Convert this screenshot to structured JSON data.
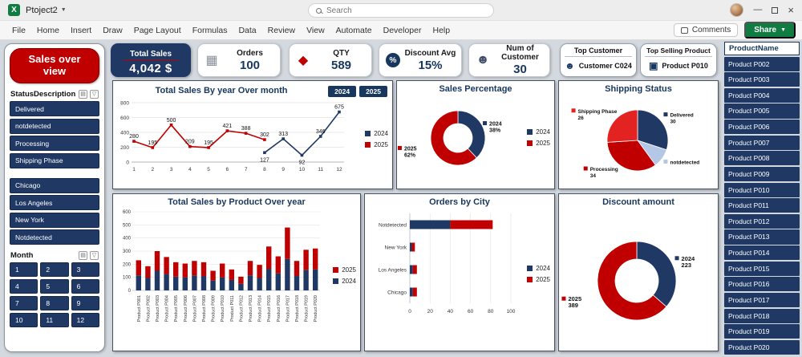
{
  "titlebar": {
    "workbook_name": "Ptoject2",
    "search_placeholder": "Search"
  },
  "ribbon": {
    "tabs": [
      "File",
      "Home",
      "Insert",
      "Draw",
      "Page Layout",
      "Formulas",
      "Data",
      "Review",
      "View",
      "Automate",
      "Developer",
      "Help"
    ],
    "comments_label": "Comments",
    "share_label": "Share"
  },
  "sidebar": {
    "title": "Sales over view",
    "status_slicer": {
      "header": "StatusDescription",
      "items": [
        "Delivered",
        "notdetected",
        "Processing",
        "Shipping Phase"
      ]
    },
    "city_slicer": {
      "items": [
        "Chicago",
        "Los Angeles",
        "New York",
        "Notdetected"
      ]
    },
    "month_slicer": {
      "header": "Month",
      "items": [
        "1",
        "2",
        "3",
        "4",
        "5",
        "6",
        "7",
        "8",
        "9",
        "10",
        "11",
        "12"
      ]
    }
  },
  "kpis": {
    "total_sales": {
      "label": "Total Sales",
      "value": "4,042 $"
    },
    "stats": [
      {
        "label": "Orders",
        "value": "100",
        "icon": "calculator-icon"
      },
      {
        "label": "QTY",
        "value": "589",
        "icon": "boxes-icon"
      },
      {
        "label": "Discount Avg",
        "value": "15%",
        "icon": "discount-icon"
      },
      {
        "label": "Num of Customer",
        "value": "30",
        "icon": "customers-icon"
      }
    ],
    "top_cards": [
      {
        "header": "Top Customer",
        "value": "Customer C024",
        "icon": "person-icon"
      },
      {
        "header": "Top Selling Product",
        "value": "Product P010",
        "icon": "product-bag-icon"
      }
    ]
  },
  "product_panel": {
    "header": "ProductName",
    "items": [
      "Product P002",
      "Product P003",
      "Product P004",
      "Product P005",
      "Product P006",
      "Product P007",
      "Product P008",
      "Product P009",
      "Product P010",
      "Product P011",
      "Product P012",
      "Product P013",
      "Product P014",
      "Product P015",
      "Product P016",
      "Product P017",
      "Product P018",
      "Product P019",
      "Product P020"
    ]
  },
  "colors": {
    "navy": "#1F3864",
    "red": "#C00000",
    "light_blue": "#B4C7E7",
    "green": "#107C41"
  },
  "chart_data": [
    {
      "id": "total-sales-by-year-over-month",
      "type": "line",
      "title": "Total Sales By year Over month",
      "buttons": [
        "2024",
        "2025"
      ],
      "x_ticks": [
        1,
        2,
        3,
        4,
        5,
        6,
        7,
        8,
        9,
        10,
        11,
        12
      ],
      "ylim": [
        0,
        800
      ],
      "y_ticks": [
        0,
        200,
        400,
        600,
        800
      ],
      "legend": [
        {
          "name": "2024",
          "color": "#1F3864"
        },
        {
          "name": "2025",
          "color": "#C00000"
        }
      ],
      "series": [
        {
          "name": "2025",
          "color": "#C00000",
          "points": [
            {
              "x": 1,
              "y": 280
            },
            {
              "x": 2,
              "y": 195
            },
            {
              "x": 3,
              "y": 500
            },
            {
              "x": 4,
              "y": 209
            },
            {
              "x": 5,
              "y": 195
            },
            {
              "x": 6,
              "y": 421
            },
            {
              "x": 7,
              "y": 388
            },
            {
              "x": 8,
              "y": 302
            }
          ]
        },
        {
          "name": "2024",
          "color": "#1F3864",
          "points": [
            {
              "x": 8,
              "y": 127,
              "lp": "b"
            },
            {
              "x": 9,
              "y": 313
            },
            {
              "x": 10,
              "y": 92,
              "lp": "b"
            },
            {
              "x": 11,
              "y": 346
            },
            {
              "x": 12,
              "y": 675
            }
          ]
        }
      ]
    },
    {
      "id": "sales-percentage",
      "type": "donut",
      "title": "Sales Percentage",
      "legend": [
        {
          "name": "2024",
          "color": "#1F3864"
        },
        {
          "name": "2025",
          "color": "#C00000"
        }
      ],
      "slices": [
        {
          "label": "2024",
          "value": 38,
          "value_label": "38%",
          "color": "#1F3864"
        },
        {
          "label": "2025",
          "value": 62,
          "value_label": "62%",
          "color": "#C00000"
        }
      ]
    },
    {
      "id": "shipping-status",
      "type": "pie",
      "title": "Shipping Status",
      "slices": [
        {
          "label": "Delivered",
          "value": 30,
          "value_label": "30",
          "color": "#1F3864"
        },
        {
          "label": "notdetected",
          "value": 10,
          "value_label": "",
          "color": "#B4C7E7"
        },
        {
          "label": "Processing",
          "value": 34,
          "value_label": "34",
          "color": "#C00000"
        },
        {
          "label": "Shipping Phase",
          "value": 26,
          "value_label": "26",
          "color": "#E32222"
        }
      ]
    },
    {
      "id": "total-sales-by-product-over-year",
      "type": "stacked-bar",
      "title": "Total Sales by Product Over year",
      "categories": [
        "Product P001",
        "Product P002",
        "Product P003",
        "Product P004",
        "Product P005",
        "Product P006",
        "Product P007",
        "Product P008",
        "Product P009",
        "Product P010",
        "Product P011",
        "Product P012",
        "Product P013",
        "Product P014",
        "Product P015",
        "Product P016",
        "Product P017",
        "Product P018",
        "Product P019",
        "Product P020"
      ],
      "ylim": [
        0,
        600
      ],
      "y_ticks": [
        0,
        100,
        200,
        300,
        400,
        500,
        600
      ],
      "legend": [
        {
          "name": "2025",
          "color": "#C00000"
        },
        {
          "name": "2024",
          "color": "#1F3864"
        }
      ],
      "series": [
        {
          "name": "2024",
          "color": "#1F3864",
          "values": [
            115,
            95,
            150,
            125,
            105,
            100,
            115,
            110,
            75,
            100,
            80,
            50,
            115,
            95,
            165,
            130,
            240,
            110,
            155,
            160
          ]
        },
        {
          "name": "2025",
          "color": "#C00000",
          "values": [
            115,
            90,
            150,
            130,
            110,
            105,
            110,
            105,
            75,
            105,
            80,
            55,
            110,
            100,
            170,
            130,
            240,
            115,
            155,
            160
          ]
        }
      ]
    },
    {
      "id": "orders-by-city",
      "type": "stacked-bar-horizontal",
      "title": "Orders by City",
      "categories": [
        "Notdetected",
        "New York",
        "Los Angeles",
        "Chicago"
      ],
      "xlim": [
        0,
        100
      ],
      "x_ticks": [
        0,
        20,
        40,
        60,
        80,
        100
      ],
      "legend": [
        {
          "name": "2024",
          "color": "#1F3864"
        },
        {
          "name": "2025",
          "color": "#C00000"
        }
      ],
      "series": [
        {
          "name": "2024",
          "color": "#1F3864",
          "values": [
            40,
            2,
            3,
            3
          ]
        },
        {
          "name": "2025",
          "color": "#C00000",
          "values": [
            42,
            3,
            4,
            4
          ]
        }
      ]
    },
    {
      "id": "discount-amount",
      "type": "donut",
      "title": "Discount amount",
      "slices": [
        {
          "label": "2024",
          "value": 223,
          "value_label": "223",
          "color": "#1F3864"
        },
        {
          "label": "2025",
          "value": 389,
          "value_label": "389",
          "color": "#C00000"
        }
      ]
    }
  ]
}
